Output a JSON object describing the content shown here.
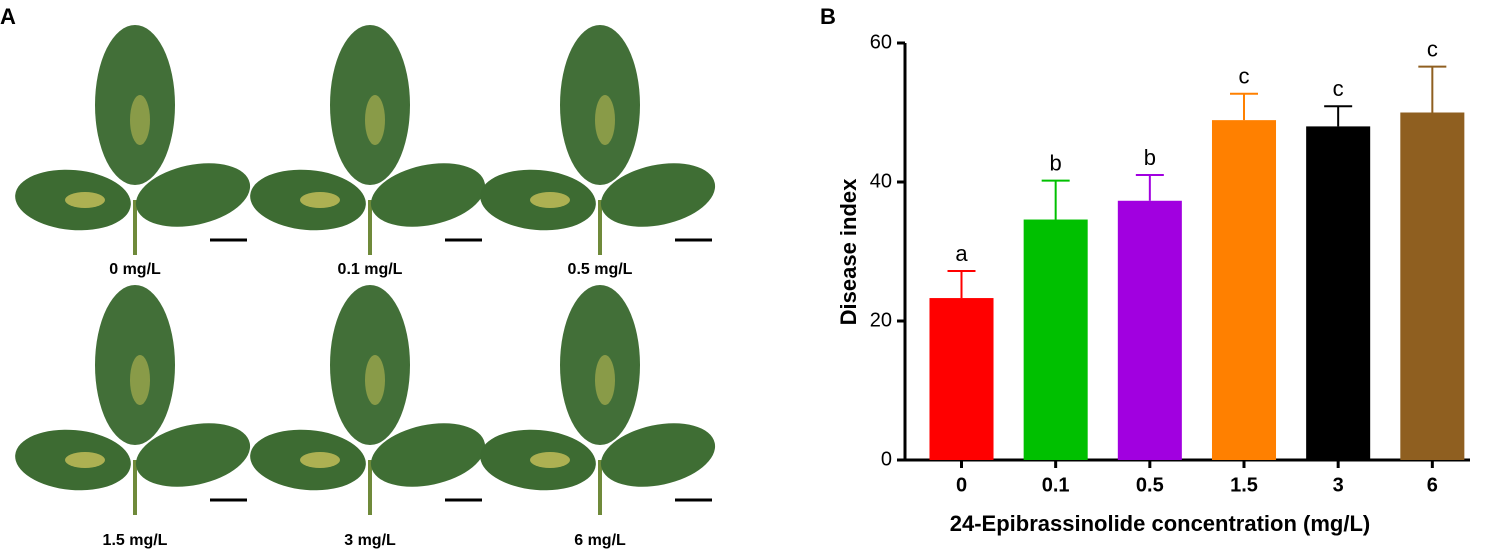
{
  "panel_a": {
    "label": "A",
    "captions": [
      "0 mg/L",
      "0.1 mg/L",
      "0.5 mg/L",
      "1.5 mg/L",
      "3 mg/L",
      "6 mg/L"
    ]
  },
  "chart_data": {
    "type": "bar",
    "panel_label": "B",
    "x_label": "24-Epibrassinolide concentration  (mg/L)",
    "y_label": "Disease index",
    "categories": [
      "0",
      "0.1",
      "0.5",
      "1.5",
      "3",
      "6"
    ],
    "values": [
      23.3,
      34.6,
      37.3,
      48.9,
      48.0,
      50.0
    ],
    "errors": [
      3.9,
      5.6,
      3.7,
      3.8,
      2.9,
      6.6
    ],
    "annotations": [
      "a",
      "b",
      "b",
      "c",
      "c",
      "c"
    ],
    "colors": [
      "#ff0000",
      "#00c000",
      "#a100e0",
      "#ff8000",
      "#000000",
      "#8f5f20"
    ],
    "ylim": [
      0,
      60
    ],
    "yticks": [
      0,
      20,
      40,
      60
    ]
  }
}
